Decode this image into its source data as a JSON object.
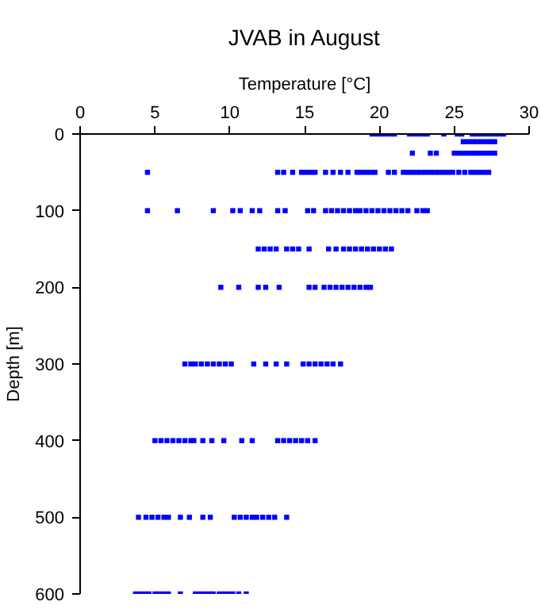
{
  "chart_data": {
    "type": "scatter",
    "title": "JVAB in August",
    "xlabel": "Temperature [°C]",
    "ylabel": "Depth [m]",
    "xlim": [
      0,
      30
    ],
    "xticks": [
      0,
      5,
      10,
      15,
      20,
      25,
      30
    ],
    "ylim": [
      600,
      0
    ],
    "yticks": [
      0,
      100,
      200,
      300,
      400,
      500,
      600
    ],
    "grid": false,
    "marker": "square",
    "series": [
      {
        "color": "#0000ff",
        "x": [
          19.5,
          19.8,
          20.1,
          20.4,
          20.7,
          21.0,
          22.0,
          22.3,
          22.6,
          22.9,
          23.2,
          24.3,
          25.2,
          25.5,
          26.2,
          26.5,
          26.8,
          27.1,
          27.4,
          27.7,
          28.0,
          28.3,
          25.6,
          25.9,
          26.2,
          26.5,
          26.8,
          27.1,
          27.4,
          27.7,
          22.2,
          23.4,
          23.8,
          25.0,
          25.3,
          25.6,
          25.9,
          26.2,
          26.5,
          26.8,
          27.1,
          27.4,
          27.7,
          4.5,
          13.2,
          13.6,
          14.2,
          14.8,
          15.1,
          15.4,
          15.7,
          16.4,
          16.9,
          17.4,
          17.9,
          18.5,
          18.8,
          19.1,
          19.4,
          19.7,
          20.6,
          21.0,
          21.6,
          21.9,
          22.2,
          22.5,
          22.8,
          23.1,
          23.4,
          23.7,
          24.0,
          24.3,
          24.6,
          24.9,
          25.3,
          25.7,
          26.1,
          26.4,
          26.7,
          27.0,
          27.3,
          4.5,
          6.5,
          8.9,
          10.2,
          10.7,
          11.5,
          12.0,
          13.2,
          13.7,
          15.2,
          15.6,
          16.4,
          16.8,
          17.2,
          17.6,
          18.0,
          18.4,
          18.7,
          19.1,
          19.5,
          19.9,
          20.3,
          20.7,
          21.1,
          21.5,
          21.9,
          22.5,
          22.9,
          23.2,
          11.9,
          12.3,
          12.7,
          13.1,
          13.8,
          14.2,
          14.6,
          15.3,
          16.6,
          17.1,
          17.6,
          18.0,
          18.4,
          18.8,
          19.2,
          19.6,
          20.0,
          20.4,
          20.8,
          9.4,
          10.6,
          11.9,
          12.4,
          13.3,
          15.3,
          15.7,
          16.3,
          16.7,
          17.1,
          17.5,
          17.9,
          18.3,
          18.7,
          19.1,
          19.4,
          7.0,
          7.4,
          7.7,
          8.1,
          8.5,
          8.9,
          9.3,
          9.7,
          10.1,
          11.6,
          12.4,
          13.1,
          13.8,
          14.9,
          15.3,
          15.7,
          16.1,
          16.5,
          16.9,
          17.4,
          5.0,
          5.4,
          5.8,
          6.2,
          6.6,
          7.0,
          7.4,
          7.6,
          8.2,
          8.8,
          9.6,
          10.8,
          11.5,
          13.2,
          13.6,
          14.0,
          14.4,
          14.8,
          15.2,
          15.7,
          3.9,
          4.4,
          4.8,
          5.2,
          5.6,
          5.9,
          6.7,
          7.3,
          8.2,
          8.7,
          10.3,
          10.7,
          11.1,
          11.5,
          11.8,
          12.2,
          12.6,
          13.0,
          13.8,
          3.7,
          4.0,
          4.3,
          4.6,
          5.0,
          5.3,
          5.6,
          5.9,
          6.7,
          7.7,
          8.0,
          8.3,
          8.6,
          8.9,
          9.3,
          9.6,
          9.9,
          10.2,
          10.6,
          11.1
        ],
        "values": [
          0,
          0,
          0,
          0,
          0,
          0,
          0,
          0,
          0,
          0,
          0,
          0,
          0,
          0,
          0,
          0,
          0,
          0,
          0,
          0,
          0,
          0,
          10,
          10,
          10,
          10,
          10,
          10,
          10,
          10,
          25,
          25,
          25,
          25,
          25,
          25,
          25,
          25,
          25,
          25,
          25,
          25,
          25,
          50,
          50,
          50,
          50,
          50,
          50,
          50,
          50,
          50,
          50,
          50,
          50,
          50,
          50,
          50,
          50,
          50,
          50,
          50,
          50,
          50,
          50,
          50,
          50,
          50,
          50,
          50,
          50,
          50,
          50,
          50,
          50,
          50,
          50,
          50,
          50,
          50,
          50,
          100,
          100,
          100,
          100,
          100,
          100,
          100,
          100,
          100,
          100,
          100,
          100,
          100,
          100,
          100,
          100,
          100,
          100,
          100,
          100,
          100,
          100,
          100,
          100,
          100,
          100,
          100,
          100,
          100,
          150,
          150,
          150,
          150,
          150,
          150,
          150,
          150,
          150,
          150,
          150,
          150,
          150,
          150,
          150,
          150,
          150,
          150,
          150,
          200,
          200,
          200,
          200,
          200,
          200,
          200,
          200,
          200,
          200,
          200,
          200,
          200,
          200,
          200,
          200,
          300,
          300,
          300,
          300,
          300,
          300,
          300,
          300,
          300,
          300,
          300,
          300,
          300,
          300,
          300,
          300,
          300,
          300,
          300,
          300,
          400,
          400,
          400,
          400,
          400,
          400,
          400,
          400,
          400,
          400,
          400,
          400,
          400,
          400,
          400,
          400,
          400,
          400,
          400,
          400,
          500,
          500,
          500,
          500,
          500,
          500,
          500,
          500,
          500,
          500,
          500,
          500,
          500,
          500,
          500,
          500,
          500,
          500,
          500,
          600,
          600,
          600,
          600,
          600,
          600,
          600,
          600,
          600,
          600,
          600,
          600,
          600,
          600,
          600,
          600,
          600,
          600,
          600,
          600
        ]
      }
    ]
  }
}
